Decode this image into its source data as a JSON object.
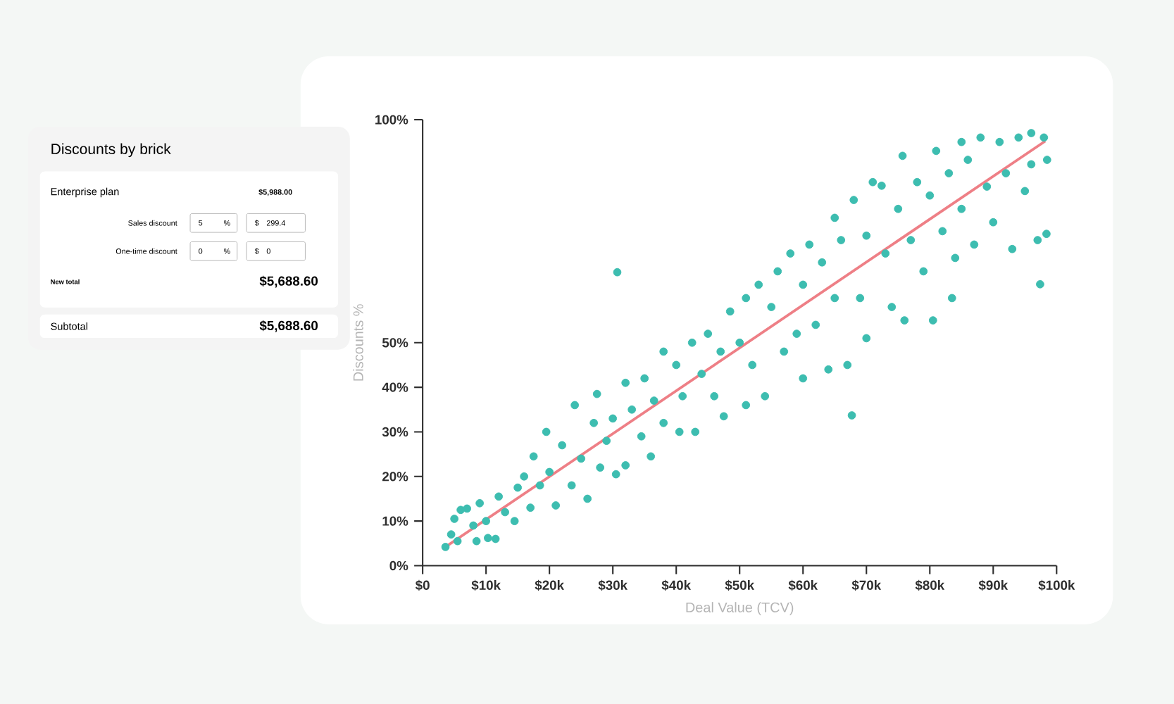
{
  "chart_data": {
    "type": "scatter",
    "xlabel": "Deal Value (TCV)",
    "ylabel": "Discounts %",
    "xlim": [
      0,
      100
    ],
    "ylim": [
      0,
      100
    ],
    "xticks": [
      {
        "value": 0,
        "label": "$0"
      },
      {
        "value": 10,
        "label": "$10k"
      },
      {
        "value": 20,
        "label": "$20k"
      },
      {
        "value": 30,
        "label": "$30k"
      },
      {
        "value": 40,
        "label": "$40k"
      },
      {
        "value": 50,
        "label": "$50k"
      },
      {
        "value": 60,
        "label": "$60k"
      },
      {
        "value": 70,
        "label": "$70k"
      },
      {
        "value": 80,
        "label": "$80k"
      },
      {
        "value": 90,
        "label": "$90k"
      },
      {
        "value": 100,
        "label": "$100k"
      }
    ],
    "yticks": [
      {
        "value": 0,
        "label": "0%"
      },
      {
        "value": 10,
        "label": "10%"
      },
      {
        "value": 20,
        "label": "20%"
      },
      {
        "value": 30,
        "label": "30%"
      },
      {
        "value": 40,
        "label": "40%"
      },
      {
        "value": 50,
        "label": "50%"
      },
      {
        "value": 100,
        "label": "100%"
      }
    ],
    "grid": false,
    "series": [
      {
        "marker": "circle",
        "color": "#3dbdb0",
        "x": [
          3.6,
          4.5,
          5,
          6,
          5.5,
          7,
          8,
          8.5,
          9,
          10,
          10.3,
          11.5,
          12,
          13,
          14.5,
          15,
          16,
          17,
          17.5,
          18.5,
          19.5,
          20,
          21,
          22,
          23.5,
          24,
          25,
          26,
          27,
          27.5,
          28,
          29,
          30,
          30.5,
          30.7,
          32,
          32,
          33,
          34.5,
          35,
          36,
          36.5,
          38,
          38,
          40,
          40.5,
          41,
          42.5,
          43,
          44,
          45,
          46,
          47,
          47.5,
          48.5,
          50,
          51,
          51,
          52,
          53,
          54,
          55,
          56,
          57,
          58,
          59,
          60,
          60,
          61,
          62,
          63,
          64,
          65,
          65,
          66,
          67,
          67.7,
          68,
          69,
          70,
          70,
          71,
          72.4,
          73,
          74,
          75,
          75.7,
          76,
          77,
          78,
          79,
          80,
          80.5,
          81,
          82,
          83,
          83.5,
          84,
          85,
          85,
          86,
          87,
          88,
          89,
          90,
          91,
          92,
          93,
          94,
          95,
          96,
          96,
          97,
          97.4,
          98,
          98.4,
          98.5
        ],
        "values": [
          4.2,
          7,
          10.5,
          12.5,
          5.5,
          12.8,
          9,
          5.5,
          14,
          10,
          6.2,
          6,
          15.5,
          12,
          10,
          17.5,
          20,
          13,
          24.5,
          18,
          30,
          21,
          13.5,
          27,
          18,
          36,
          24,
          15,
          32,
          38.5,
          22,
          28,
          33,
          20.5,
          65.8,
          41,
          22.5,
          35,
          29,
          42,
          24.5,
          37,
          48,
          32,
          45,
          30,
          38,
          50,
          30,
          43,
          52,
          38,
          48,
          33.5,
          57,
          50,
          60,
          36,
          45,
          63,
          38,
          58,
          66,
          48,
          70,
          52,
          63,
          42,
          72,
          54,
          68,
          44,
          78,
          60,
          73,
          45,
          33.7,
          82,
          60,
          74,
          51,
          86,
          85.2,
          70,
          58,
          80,
          91.9,
          55,
          73,
          86,
          66,
          83,
          55,
          93,
          75,
          88,
          60,
          69,
          95,
          80,
          91,
          72,
          96,
          85,
          77,
          95,
          88,
          71,
          96,
          84,
          97,
          90,
          73,
          63.1,
          96,
          74.4,
          91
        ]
      },
      {
        "type": "line",
        "marker": "none",
        "color": "#ee7f86",
        "x": [
          3.6,
          98.2
        ],
        "values": [
          4.2,
          95.2
        ]
      }
    ],
    "annotations": [
      "Discounts by brick",
      "Enterprise plan",
      "$5,988.00",
      "Sales discount",
      "5",
      "%",
      "$",
      "299.4",
      "One-time discount",
      "0",
      "%",
      "$",
      "0",
      "New total",
      "$5,688.60",
      "Subtotal",
      "$5,688.60"
    ]
  }
}
